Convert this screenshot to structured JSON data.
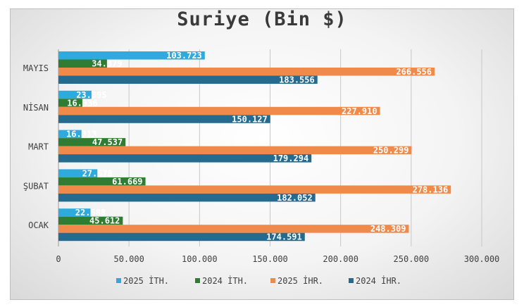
{
  "chart_data": {
    "type": "bar",
    "orientation": "horizontal",
    "title": "Suriye (Bin $)",
    "categories": [
      "MAYIS",
      "NİSAN",
      "MART",
      "ŞUBAT",
      "OCAK"
    ],
    "series": [
      {
        "name": "2025 İTH.",
        "color": "#2eaadc",
        "values": [
          103723,
          23395,
          16313,
          27578,
          22688
        ],
        "labels": [
          "103.723",
          "23.395",
          "16.313",
          "27.578",
          "22.688"
        ]
      },
      {
        "name": "2024 İTH.",
        "color": "#2e7d32",
        "values": [
          34379,
          16936,
          47537,
          61669,
          45612
        ],
        "labels": [
          "34.379",
          "16.936",
          "47.537",
          "61.669",
          "45.612"
        ]
      },
      {
        "name": "2025 İHR.",
        "color": "#f08a4b",
        "values": [
          266556,
          227910,
          250299,
          278136,
          248309
        ],
        "labels": [
          "266.556",
          "227.910",
          "250.299",
          "278.136",
          "248.309"
        ]
      },
      {
        "name": "2024 İHR.",
        "color": "#246b8f",
        "values": [
          183556,
          150127,
          179294,
          182052,
          174591
        ],
        "labels": [
          "183.556",
          "150.127",
          "179.294",
          "182.052",
          "174.591"
        ]
      }
    ],
    "xlim": [
      0,
      300000
    ],
    "xticks": [
      0,
      50000,
      100000,
      150000,
      200000,
      250000,
      300000
    ],
    "xtick_labels": [
      "0",
      "50.000",
      "100.000",
      "150.000",
      "200.000",
      "250.000",
      "300.000"
    ],
    "grid": true,
    "legend": "bottom"
  }
}
